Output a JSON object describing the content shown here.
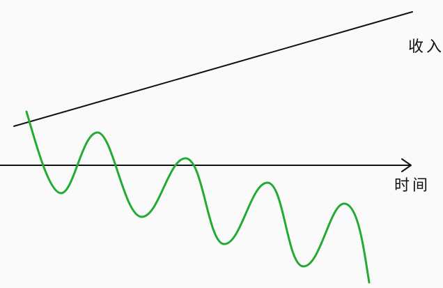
{
  "labels": {
    "income": "收入",
    "time": "时间"
  },
  "colors": {
    "background": "#fafafa",
    "axis": "#111111",
    "trend_line": "#111111",
    "wave": "#22aa33"
  }
}
